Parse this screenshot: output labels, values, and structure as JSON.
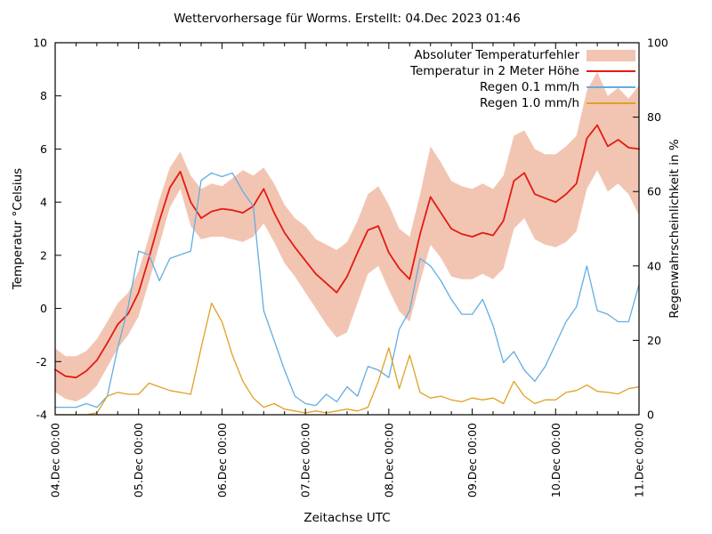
{
  "title": "Wettervorhersage für Worms. Erstellt: 04.Dec 2023 01:46",
  "chart_data": {
    "type": "line",
    "title": "Wettervorhersage für Worms. Erstellt: 04.Dec 2023 01:46",
    "xlabel": "Zeitachse UTC",
    "ylabel_left": "Temperatur °Celsius",
    "ylabel_right": "Regenwahrscheinlichkeit in %",
    "grid": false,
    "legend_position": "top-right",
    "x_axis": {
      "tick_labels": [
        "04.Dec 00:00",
        "05.Dec 00:00",
        "06.Dec 00:00",
        "07.Dec 00:00",
        "08.Dec 00:00",
        "09.Dec 00:00",
        "10.Dec 00:00",
        "11.Dec 00:00"
      ],
      "days": 7,
      "minor_tick_hours": 6,
      "sample_interval_hours": 3
    },
    "y_left": {
      "min": -4,
      "max": 10,
      "ticks": [
        -4,
        -2,
        0,
        2,
        4,
        6,
        8,
        10
      ]
    },
    "y_right": {
      "min": 0,
      "max": 100,
      "ticks": [
        0,
        20,
        40,
        60,
        80,
        100
      ]
    },
    "series": [
      {
        "name": "Absoluter Temperaturfehler",
        "type": "band",
        "axis": "left",
        "color": "#f2c5b3",
        "upper": [
          -1.5,
          -1.8,
          -1.8,
          -1.6,
          -1.15,
          -0.5,
          0.2,
          0.6,
          1.4,
          2.7,
          4.1,
          5.3,
          5.9,
          5.0,
          4.5,
          4.7,
          4.6,
          4.9,
          5.2,
          5.0,
          5.3,
          4.7,
          3.9,
          3.4,
          3.1,
          2.6,
          2.4,
          2.2,
          2.5,
          3.3,
          4.3,
          4.6,
          3.9,
          3.0,
          2.7,
          4.3,
          6.1,
          5.5,
          4.8,
          4.6,
          4.5,
          4.7,
          4.5,
          5.0,
          6.5,
          6.7,
          6.0,
          5.8,
          5.8,
          6.1,
          6.5,
          8.2,
          8.9,
          8.0,
          8.3,
          7.9,
          8.4
        ],
        "lower": [
          -3.15,
          -3.4,
          -3.5,
          -3.3,
          -2.9,
          -2.2,
          -1.5,
          -1.0,
          -0.3,
          1.0,
          2.4,
          3.8,
          4.5,
          3.1,
          2.6,
          2.7,
          2.7,
          2.6,
          2.5,
          2.7,
          3.2,
          2.5,
          1.7,
          1.2,
          0.6,
          0.0,
          -0.6,
          -1.1,
          -0.9,
          0.2,
          1.3,
          1.6,
          0.7,
          -0.1,
          -0.5,
          1.0,
          2.4,
          1.9,
          1.2,
          1.1,
          1.1,
          1.3,
          1.1,
          1.5,
          3.0,
          3.4,
          2.6,
          2.4,
          2.3,
          2.5,
          2.9,
          4.5,
          5.2,
          4.4,
          4.7,
          4.3,
          3.5
        ]
      },
      {
        "name": "Temperatur in 2 Meter Höhe",
        "type": "line",
        "axis": "left",
        "color": "#e41b10",
        "width": 1.8,
        "values": [
          -2.3,
          -2.55,
          -2.6,
          -2.35,
          -1.95,
          -1.3,
          -0.6,
          -0.2,
          0.6,
          1.9,
          3.3,
          4.55,
          5.15,
          4.0,
          3.4,
          3.65,
          3.75,
          3.7,
          3.6,
          3.85,
          4.5,
          3.6,
          2.85,
          2.3,
          1.8,
          1.3,
          0.95,
          0.6,
          1.2,
          2.1,
          2.95,
          3.1,
          2.1,
          1.5,
          1.1,
          2.8,
          4.2,
          3.6,
          3.0,
          2.8,
          2.7,
          2.85,
          2.75,
          3.3,
          4.8,
          5.1,
          4.3,
          4.15,
          4.0,
          4.3,
          4.7,
          6.4,
          6.9,
          6.1,
          6.35,
          6.05,
          6.0
        ]
      },
      {
        "name": "Regen 0.1 mm/h",
        "type": "line",
        "axis": "right",
        "color": "#63ade2",
        "width": 1.3,
        "values": [
          2,
          2,
          2,
          3,
          2,
          5,
          18,
          29,
          44,
          43,
          36,
          42,
          43,
          44,
          63,
          65,
          64,
          65,
          60,
          56,
          28,
          20,
          12,
          5,
          3,
          2.5,
          5.5,
          3.5,
          7.5,
          5,
          13,
          12,
          10,
          23,
          28,
          42,
          40,
          36,
          31,
          27,
          27,
          31,
          24,
          14,
          17,
          12,
          9,
          13,
          19,
          25,
          29,
          40,
          28,
          27,
          25,
          25,
          35
        ]
      },
      {
        "name": "Regen 1.0 mm/h",
        "type": "line",
        "axis": "right",
        "color": "#dfa126",
        "width": 1.3,
        "values": [
          0,
          0,
          0,
          0,
          0.5,
          5,
          6,
          5.5,
          5.5,
          8.5,
          7.5,
          6.5,
          6,
          5.5,
          18,
          30,
          25,
          16,
          9,
          4.5,
          2,
          3,
          1.5,
          1,
          0.5,
          1,
          0.5,
          1,
          1.5,
          1,
          2,
          9,
          18,
          7,
          16,
          6,
          4.5,
          5,
          4,
          3.5,
          4.5,
          4,
          4.5,
          3,
          9,
          5,
          3,
          4,
          4,
          6,
          6.5,
          8,
          6.3,
          6,
          5.6,
          7,
          7.5
        ]
      }
    ]
  }
}
